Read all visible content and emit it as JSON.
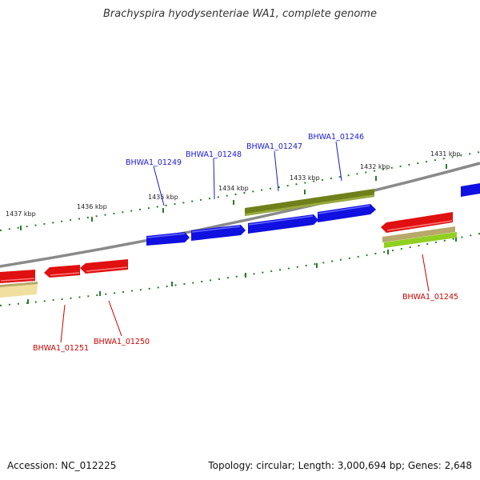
{
  "title": "Brachyspira hyodysenteriae WA1, complete genome",
  "footer": {
    "accession_label": "Accession:",
    "accession": "NC_012225",
    "topology_label": "Topology:",
    "topology": "circular",
    "length_label": "Length:",
    "length": "3,000,694 bp",
    "genes_label": "Genes:",
    "genes": "2,648"
  },
  "scale_ticks": [
    "1431 kbp",
    "1432 kbp",
    "1433 kbp",
    "1434 kbp",
    "1435 kbp",
    "1436 kbp",
    "1437 kbp"
  ],
  "gene_labels": [
    {
      "name": "BHWA1_01246",
      "strand": "forward"
    },
    {
      "name": "BHWA1_01247",
      "strand": "forward"
    },
    {
      "name": "BHWA1_01248",
      "strand": "forward"
    },
    {
      "name": "BHWA1_01249",
      "strand": "forward"
    },
    {
      "name": "BHWA1_01245",
      "strand": "reverse"
    },
    {
      "name": "BHWA1_01250",
      "strand": "reverse"
    },
    {
      "name": "BHWA1_01251",
      "strand": "reverse"
    }
  ],
  "colors": {
    "forward_gene": "#1010e0",
    "reverse_gene": "#e01010",
    "forward_label": "#1a1ad0",
    "reverse_label": "#cc0000",
    "backbone": "#808080",
    "scale_dots": "#2a7a2a",
    "olive_feature": "#6f7f1a",
    "khaki_feature": "#b8a86a",
    "lime_feature": "#90d020",
    "pale_feature": "#f0e0a0"
  }
}
